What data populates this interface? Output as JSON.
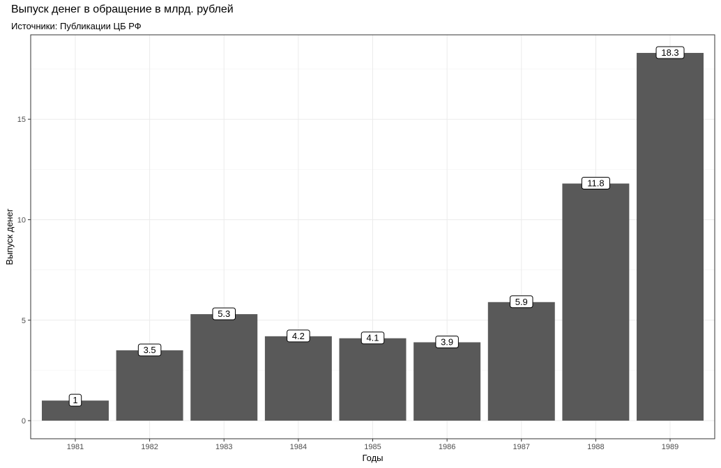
{
  "title": "Выпуск денег в обращение в млрд. рублей",
  "subtitle": "Источники: Публикации ЦБ РФ",
  "chart_data": {
    "type": "bar",
    "categories": [
      "1981",
      "1982",
      "1983",
      "1984",
      "1985",
      "1986",
      "1987",
      "1988",
      "1989"
    ],
    "values": [
      1,
      3.5,
      5.3,
      4.2,
      4.1,
      3.9,
      5.9,
      11.8,
      18.3
    ],
    "labels": [
      "1",
      "3.5",
      "5.3",
      "4.2",
      "4.1",
      "3.9",
      "5.9",
      "11.8",
      "18.3"
    ],
    "xlabel": "Годы",
    "ylabel": "Выпуск денег",
    "ylim": [
      -0.9,
      19.2
    ],
    "yticks": [
      0,
      5,
      10,
      15
    ],
    "grid": true,
    "bar_color": "#595959",
    "panel_border_color": "#333333",
    "grid_color": "#ebebeb"
  }
}
